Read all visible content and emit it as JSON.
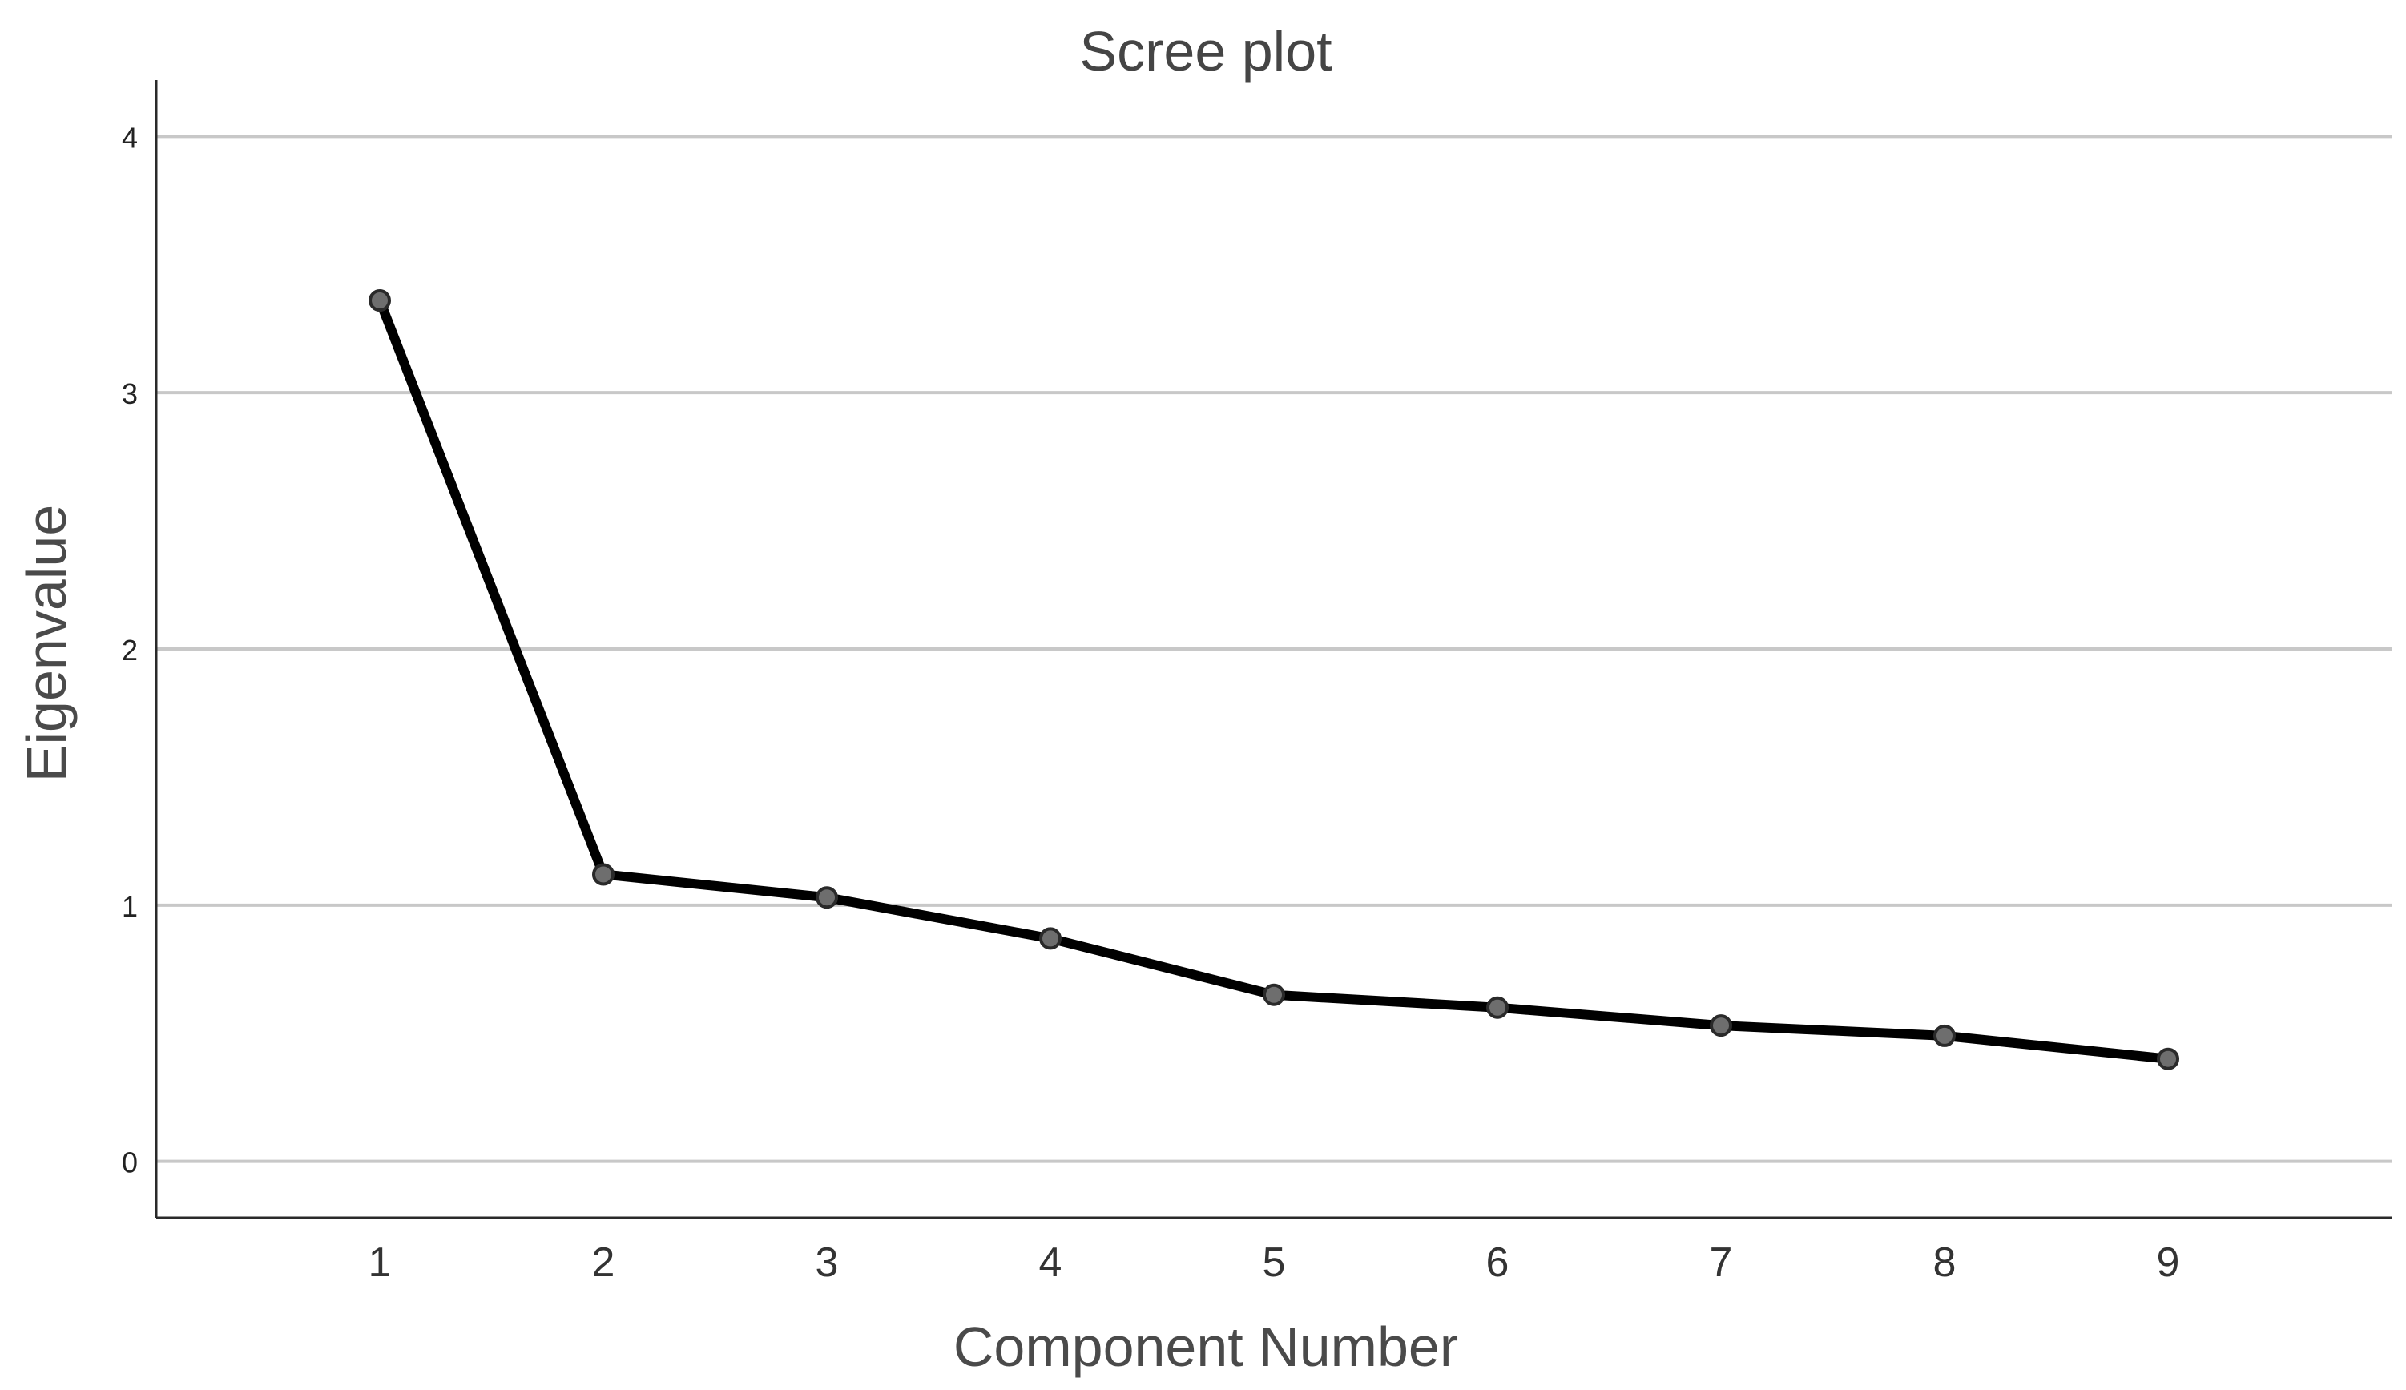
{
  "chart_data": {
    "type": "line",
    "title": "Scree plot",
    "xlabel": "Component Number",
    "ylabel": "Eigenvalue",
    "x": [
      1,
      2,
      3,
      4,
      5,
      6,
      7,
      8,
      9
    ],
    "x_tick_labels": [
      "1",
      "2",
      "3",
      "4",
      "5",
      "6",
      "7",
      "8",
      "9"
    ],
    "y_ticks": [
      0,
      1,
      2,
      3,
      4
    ],
    "y_tick_labels": [
      "0",
      "1",
      "2",
      "3",
      "4"
    ],
    "xlim": [
      0,
      10
    ],
    "ylim": [
      -0.22,
      4.22
    ],
    "grid": "horizontal",
    "legend": "none",
    "series": [
      {
        "values": [
          3.36,
          1.12,
          1.03,
          0.87,
          0.65,
          0.6,
          0.53,
          0.49,
          0.4
        ]
      }
    ],
    "colors": {
      "line": "#000000",
      "marker_fill": "#6e6e6e",
      "marker_stroke": "#2a2a2a",
      "gridline": "#c8c8c8",
      "axis": "#2a2a2a"
    }
  }
}
